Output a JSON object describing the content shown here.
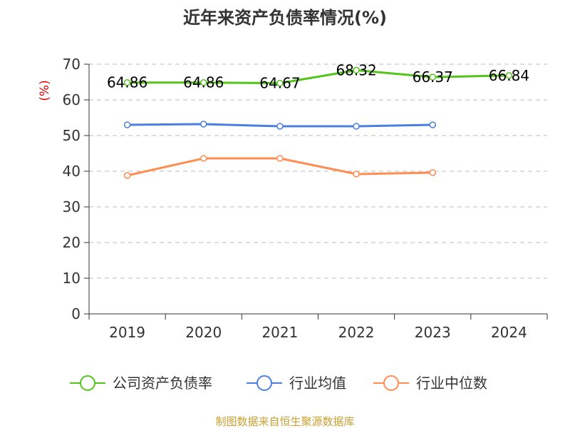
{
  "chart_data": {
    "type": "line",
    "title": "近年来资产负债率情况(%)",
    "ylabel": "(%)",
    "xlabel": "",
    "ylim": [
      0,
      70
    ],
    "yticks": [
      0,
      10,
      20,
      30,
      40,
      50,
      60,
      70
    ],
    "grid": true,
    "legend_position": "bottom",
    "categories": [
      "2019",
      "2020",
      "2021",
      "2022",
      "2023",
      "2024"
    ],
    "series": [
      {
        "name": "公司资产负债率",
        "color": "#52c41a",
        "values": [
          64.86,
          64.86,
          64.67,
          68.32,
          66.37,
          66.84
        ],
        "labels": [
          "64.86",
          "64.86",
          "64.67",
          "68.32",
          "66.37",
          "66.84"
        ]
      },
      {
        "name": "行业均值",
        "color": "#4a7fe0",
        "values": [
          53.0,
          53.2,
          52.6,
          52.6,
          53.0,
          null
        ]
      },
      {
        "name": "行业中位数",
        "color": "#ff8c50",
        "values": [
          38.8,
          43.6,
          43.6,
          39.2,
          39.6,
          null
        ]
      }
    ]
  },
  "source": "制图数据来自恒生聚源数据库"
}
